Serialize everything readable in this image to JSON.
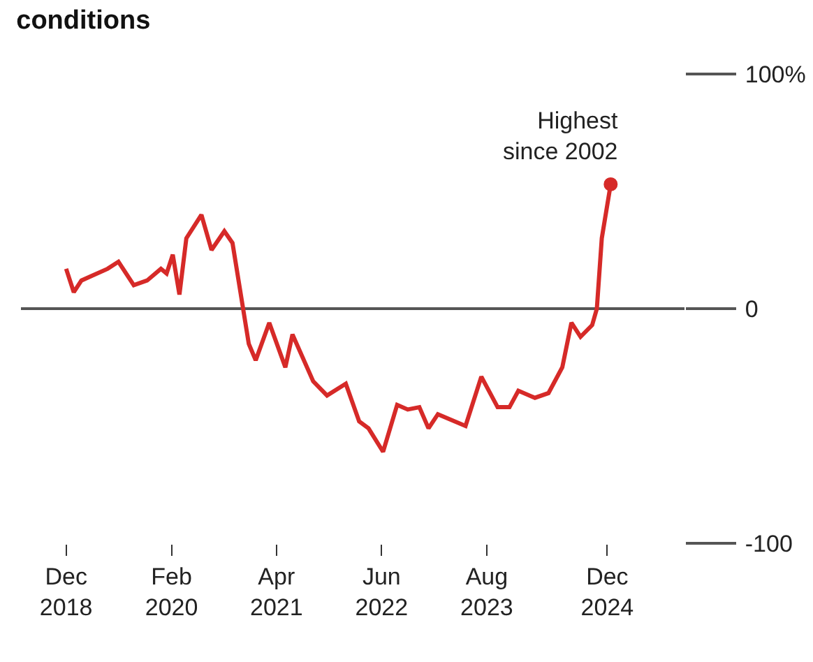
{
  "chart_data": {
    "type": "line",
    "title": "conditions",
    "x": [
      "2018-12-01",
      "2019-01-01",
      "2019-02-01",
      "2019-03-15",
      "2019-05-18",
      "2019-07-01",
      "2019-09-01",
      "2019-10-25",
      "2019-12-20",
      "2020-01-12",
      "2020-02-06",
      "2020-03-04",
      "2020-04-01",
      "2020-06-01",
      "2020-07-12",
      "2020-09-02",
      "2020-10-05",
      "2020-12-10",
      "2021-01-07",
      "2021-03-03",
      "2021-05-07",
      "2021-06-05",
      "2021-08-28",
      "2021-10-23",
      "2022-01-07",
      "2022-03-02",
      "2022-04-09",
      "2022-06-07",
      "2022-08-03",
      "2022-09-15",
      "2022-11-01",
      "2022-12-08",
      "2023-01-15",
      "2023-05-07",
      "2023-07-10",
      "2023-09-14",
      "2023-11-01",
      "2023-12-07",
      "2024-02-12",
      "2024-04-07",
      "2024-06-02",
      "2024-07-09",
      "2024-08-15",
      "2024-10-01",
      "2024-10-20",
      "2024-11-09",
      "2024-12-15"
    ],
    "series": [
      {
        "color": "#d62a28",
        "values": [
          17,
          7,
          12,
          14,
          17,
          20,
          10,
          12,
          17,
          15,
          23,
          6,
          30,
          40,
          25,
          33,
          28,
          -15,
          -22,
          -6,
          -25,
          -11,
          -31,
          -37,
          -32,
          -48,
          -51,
          -61,
          -41,
          -43,
          -42,
          -51,
          -45,
          -50,
          -29,
          -42,
          -42,
          -35,
          -38,
          -36,
          -25,
          -6,
          -12,
          -7,
          0,
          30,
          53
        ]
      }
    ],
    "xlim": [
      "2018-06-01",
      "2025-10-10"
    ],
    "xticks": [
      {
        "value": "2018-12-01",
        "label": "Dec\n2018"
      },
      {
        "value": "2020-02-01",
        "label": "Feb\n2020"
      },
      {
        "value": "2021-04-01",
        "label": "Apr\n2021"
      },
      {
        "value": "2022-06-01",
        "label": "Jun\n2022"
      },
      {
        "value": "2023-08-01",
        "label": "Aug\n2023"
      },
      {
        "value": "2024-12-01",
        "label": "Dec\n2024"
      }
    ],
    "ylim": [
      -100,
      100
    ],
    "yticks": [
      {
        "value": 100,
        "label": "100%"
      },
      0,
      -100
    ],
    "annotations": [
      {
        "text": "Highest\nsince 2002",
        "x": "2024-12-15",
        "y": 53
      }
    ],
    "grid": "y",
    "line_style": "solid"
  }
}
